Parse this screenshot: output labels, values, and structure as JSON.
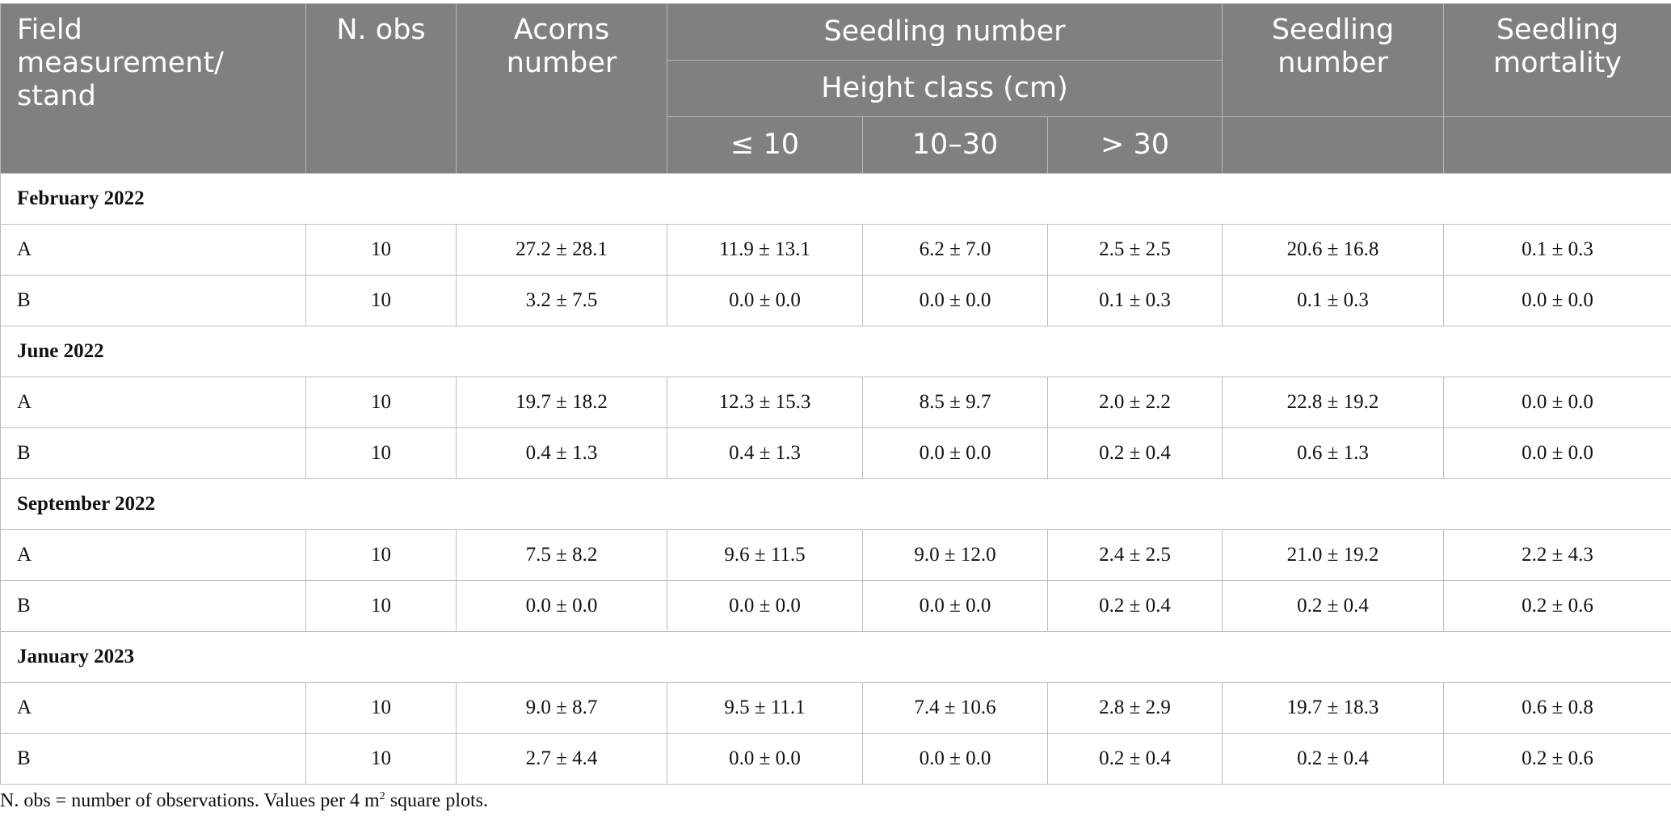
{
  "header": {
    "field_measurement": "Field measurement/ stand",
    "n_obs": "N. obs",
    "acorns_number": "Acorns number",
    "seedling_number_group": "Seedling number",
    "height_class": "Height class (cm)",
    "height_le10": "≤ 10",
    "height_10_30": "10–30",
    "height_gt30": "> 30",
    "seedling_number": "Seedling number",
    "seedling_mortality": "Seedling mortality"
  },
  "sections": [
    {
      "title": "February 2022",
      "rows": [
        {
          "stand": "A",
          "n": "10",
          "acorns": "27.2 ± 28.1",
          "le10": "11.9 ± 13.1",
          "h10_30": "6.2 ± 7.0",
          "gt30": "2.5 ± 2.5",
          "seedlings": "20.6 ± 16.8",
          "mortality": "0.1 ± 0.3"
        },
        {
          "stand": "B",
          "n": "10",
          "acorns": "3.2 ± 7.5",
          "le10": "0.0 ± 0.0",
          "h10_30": "0.0 ± 0.0",
          "gt30": "0.1 ± 0.3",
          "seedlings": "0.1 ± 0.3",
          "mortality": "0.0 ± 0.0"
        }
      ]
    },
    {
      "title": "June 2022",
      "rows": [
        {
          "stand": "A",
          "n": "10",
          "acorns": "19.7 ± 18.2",
          "le10": "12.3 ± 15.3",
          "h10_30": "8.5 ± 9.7",
          "gt30": "2.0 ± 2.2",
          "seedlings": "22.8 ± 19.2",
          "mortality": "0.0 ± 0.0"
        },
        {
          "stand": "B",
          "n": "10",
          "acorns": "0.4 ± 1.3",
          "le10": "0.4 ± 1.3",
          "h10_30": "0.0 ± 0.0",
          "gt30": "0.2 ± 0.4",
          "seedlings": "0.6 ± 1.3",
          "mortality": "0.0 ± 0.0"
        }
      ]
    },
    {
      "title": "September 2022",
      "rows": [
        {
          "stand": "A",
          "n": "10",
          "acorns": "7.5 ± 8.2",
          "le10": "9.6 ± 11.5",
          "h10_30": "9.0 ± 12.0",
          "gt30": "2.4 ± 2.5",
          "seedlings": "21.0 ± 19.2",
          "mortality": "2.2 ± 4.3"
        },
        {
          "stand": "B",
          "n": "10",
          "acorns": "0.0 ± 0.0",
          "le10": "0.0 ± 0.0",
          "h10_30": "0.0 ± 0.0",
          "gt30": "0.2 ± 0.4",
          "seedlings": "0.2 ± 0.4",
          "mortality": "0.2 ± 0.6"
        }
      ]
    },
    {
      "title": "January 2023",
      "rows": [
        {
          "stand": "A",
          "n": "10",
          "acorns": "9.0 ± 8.7",
          "le10": "9.5 ± 11.1",
          "h10_30": "7.4 ± 10.6",
          "gt30": "2.8 ± 2.9",
          "seedlings": "19.7 ± 18.3",
          "mortality": "0.6 ± 0.8"
        },
        {
          "stand": "B",
          "n": "10",
          "acorns": "2.7 ± 4.4",
          "le10": "0.0 ± 0.0",
          "h10_30": "0.0 ± 0.0",
          "gt30": "0.2 ± 0.4",
          "seedlings": "0.2 ± 0.4",
          "mortality": "0.2 ± 0.6"
        }
      ]
    }
  ],
  "footnote": {
    "text_before": "N. obs = number of observations. Values per 4 m",
    "superscript": "2",
    "text_after": " square plots."
  }
}
